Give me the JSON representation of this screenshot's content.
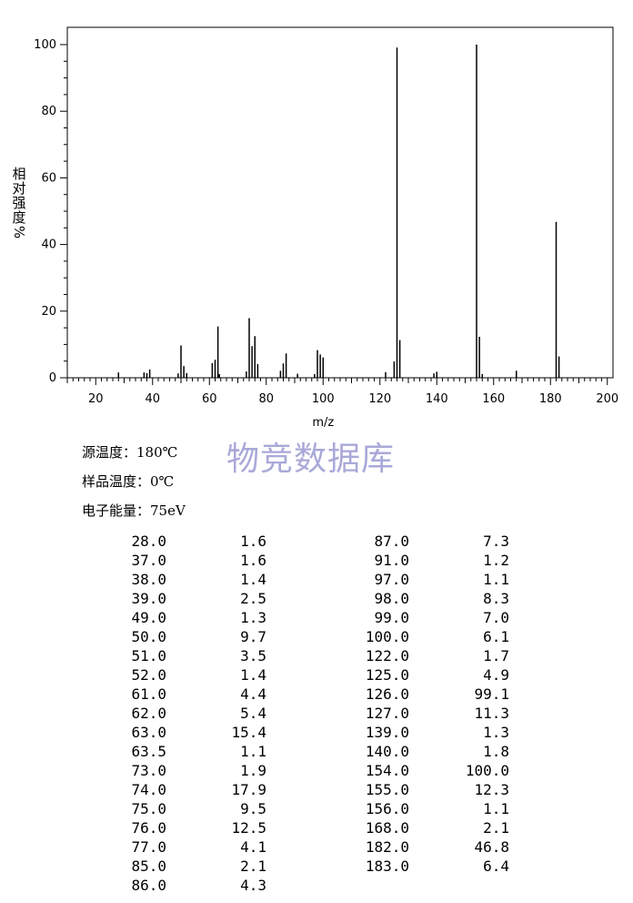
{
  "chart_data": {
    "type": "bar",
    "xlabel": "m/z",
    "ylabel": "相对强度/%",
    "xlim": [
      10,
      202
    ],
    "ylim": [
      0,
      100
    ],
    "x_ticks": [
      20,
      40,
      60,
      80,
      100,
      120,
      140,
      160,
      180,
      200
    ],
    "y_ticks": [
      0,
      20,
      40,
      60,
      80,
      100
    ],
    "grid": false,
    "peaks": [
      {
        "mz": 28.0,
        "intensity": 1.6
      },
      {
        "mz": 37.0,
        "intensity": 1.6
      },
      {
        "mz": 38.0,
        "intensity": 1.4
      },
      {
        "mz": 39.0,
        "intensity": 2.5
      },
      {
        "mz": 49.0,
        "intensity": 1.3
      },
      {
        "mz": 50.0,
        "intensity": 9.7
      },
      {
        "mz": 51.0,
        "intensity": 3.5
      },
      {
        "mz": 52.0,
        "intensity": 1.4
      },
      {
        "mz": 61.0,
        "intensity": 4.4
      },
      {
        "mz": 62.0,
        "intensity": 5.4
      },
      {
        "mz": 63.0,
        "intensity": 15.4
      },
      {
        "mz": 63.5,
        "intensity": 1.1
      },
      {
        "mz": 73.0,
        "intensity": 1.9
      },
      {
        "mz": 74.0,
        "intensity": 17.9
      },
      {
        "mz": 75.0,
        "intensity": 9.5
      },
      {
        "mz": 76.0,
        "intensity": 12.5
      },
      {
        "mz": 77.0,
        "intensity": 4.1
      },
      {
        "mz": 85.0,
        "intensity": 2.1
      },
      {
        "mz": 86.0,
        "intensity": 4.3
      },
      {
        "mz": 87.0,
        "intensity": 7.3
      },
      {
        "mz": 91.0,
        "intensity": 1.2
      },
      {
        "mz": 97.0,
        "intensity": 1.1
      },
      {
        "mz": 98.0,
        "intensity": 8.3
      },
      {
        "mz": 99.0,
        "intensity": 7.0
      },
      {
        "mz": 100.0,
        "intensity": 6.1
      },
      {
        "mz": 122.0,
        "intensity": 1.7
      },
      {
        "mz": 125.0,
        "intensity": 4.9
      },
      {
        "mz": 126.0,
        "intensity": 99.1
      },
      {
        "mz": 127.0,
        "intensity": 11.3
      },
      {
        "mz": 139.0,
        "intensity": 1.3
      },
      {
        "mz": 140.0,
        "intensity": 1.8
      },
      {
        "mz": 154.0,
        "intensity": 100.0
      },
      {
        "mz": 155.0,
        "intensity": 12.3
      },
      {
        "mz": 156.0,
        "intensity": 1.1
      },
      {
        "mz": 168.0,
        "intensity": 2.1
      },
      {
        "mz": 182.0,
        "intensity": 46.8
      },
      {
        "mz": 183.0,
        "intensity": 6.4
      }
    ]
  },
  "ylabel_chars": [
    "相",
    "对",
    "强",
    "度",
    "%"
  ],
  "watermark": "物竞数据库",
  "conditions": [
    "源温度：180℃",
    "样品温度：0℃",
    "电子能量：75eV"
  ],
  "table": {
    "left": [
      [
        "28.0",
        "1.6"
      ],
      [
        "37.0",
        "1.6"
      ],
      [
        "38.0",
        "1.4"
      ],
      [
        "39.0",
        "2.5"
      ],
      [
        "49.0",
        "1.3"
      ],
      [
        "50.0",
        "9.7"
      ],
      [
        "51.0",
        "3.5"
      ],
      [
        "52.0",
        "1.4"
      ],
      [
        "61.0",
        "4.4"
      ],
      [
        "62.0",
        "5.4"
      ],
      [
        "63.0",
        "15.4"
      ],
      [
        "63.5",
        "1.1"
      ],
      [
        "73.0",
        "1.9"
      ],
      [
        "74.0",
        "17.9"
      ],
      [
        "75.0",
        "9.5"
      ],
      [
        "76.0",
        "12.5"
      ],
      [
        "77.0",
        "4.1"
      ],
      [
        "85.0",
        "2.1"
      ],
      [
        "86.0",
        "4.3"
      ]
    ],
    "right": [
      [
        "87.0",
        "7.3"
      ],
      [
        "91.0",
        "1.2"
      ],
      [
        "97.0",
        "1.1"
      ],
      [
        "98.0",
        "8.3"
      ],
      [
        "99.0",
        "7.0"
      ],
      [
        "100.0",
        "6.1"
      ],
      [
        "122.0",
        "1.7"
      ],
      [
        "125.0",
        "4.9"
      ],
      [
        "126.0",
        "99.1"
      ],
      [
        "127.0",
        "11.3"
      ],
      [
        "139.0",
        "1.3"
      ],
      [
        "140.0",
        "1.8"
      ],
      [
        "154.0",
        "100.0"
      ],
      [
        "155.0",
        "12.3"
      ],
      [
        "156.0",
        "1.1"
      ],
      [
        "168.0",
        "2.1"
      ],
      [
        "182.0",
        "46.8"
      ],
      [
        "183.0",
        "6.4"
      ]
    ]
  }
}
